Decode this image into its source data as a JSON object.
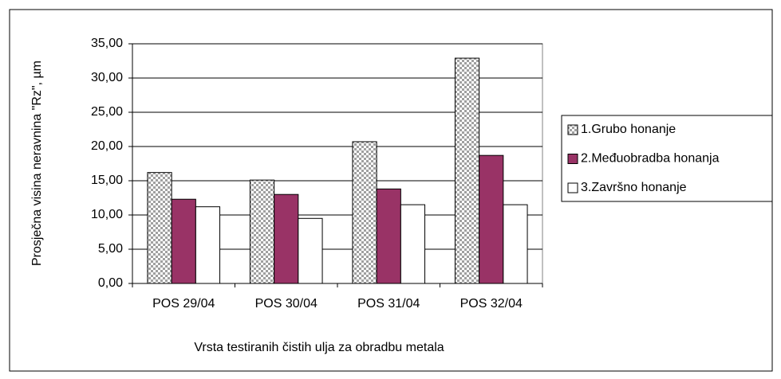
{
  "chart_data": {
    "type": "bar",
    "y_label": "Prosječna visina neravnina \"Rz\", µm",
    "x_label": "Vrsta testiranih čistih ulja za obradbu metala",
    "categories": [
      "POS 29/04",
      "POS 30/04",
      "POS 31/04",
      "POS 32/04"
    ],
    "series": [
      {
        "name": "1.Grubo honanje",
        "color": "#c0c0c0",
        "values": [
          16.2,
          15.1,
          20.7,
          32.9
        ]
      },
      {
        "name": "2.Međuobradba honanja",
        "color": "#993366",
        "values": [
          12.3,
          13.0,
          13.8,
          18.7
        ]
      },
      {
        "name": "3.Završno honanje",
        "color": "#ffffff",
        "values": [
          11.2,
          9.5,
          11.5,
          11.5
        ]
      }
    ],
    "ylim": [
      0,
      35
    ],
    "yticks": [
      {
        "value": 0,
        "label": "0,00"
      },
      {
        "value": 5,
        "label": "5,00"
      },
      {
        "value": 10,
        "label": "10,00"
      },
      {
        "value": 15,
        "label": "15,00"
      },
      {
        "value": 20,
        "label": "20,00"
      },
      {
        "value": 25,
        "label": "25,00"
      },
      {
        "value": 30,
        "label": "30,00"
      },
      {
        "value": 35,
        "label": "35,00"
      }
    ],
    "grid": true,
    "legend": "right"
  }
}
